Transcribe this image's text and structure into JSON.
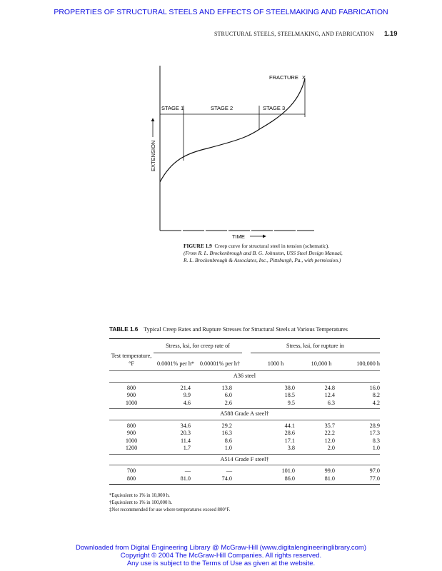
{
  "top_banner": "PROPERTIES OF STRUCTURAL STEELS AND EFFECTS OF STEELMAKING AND FABRICATION",
  "running_head": "STRUCTURAL STEELS, STEELMAKING, AND FABRICATION",
  "page_number": "1.19",
  "figure": {
    "labels": {
      "fracture": "FRACTURE",
      "fracture_mark": "X",
      "stage1": "STAGE 1",
      "stage2": "STAGE 2",
      "stage3": "STAGE 3",
      "y_axis": "EXTENSION",
      "x_axis": "TIME"
    },
    "caption_label": "FIGURE 1.9",
    "caption_text": "Creep curve for structural steel in tension (schematic).",
    "caption_source": "(From R. L. Brockenbrough and B. G. Johnston, USS Steel Design Manual, R. L. Brockenbrough & Associates, Inc., Pittsburgh, Pa., with permission.)"
  },
  "table": {
    "number": "TABLE 1.6",
    "title": "Typical Creep Rates and Rupture Stresses for Structural Steels at Various Temperatures",
    "group_headers": [
      "Stress, ksi, for creep rate of",
      "Stress, ksi, for rupture in"
    ],
    "col_headers": [
      "Test temperature, °F",
      "0.0001% per h*",
      "0.00001% per h†",
      "1000 h",
      "10,000 h",
      "100,000 h"
    ],
    "sections": [
      {
        "name": "A36 steel",
        "rows": [
          [
            "800",
            "21.4",
            "13.8",
            "38.0",
            "24.8",
            "16.0"
          ],
          [
            "900",
            "9.9",
            "6.0",
            "18.5",
            "12.4",
            "8.2"
          ],
          [
            "1000",
            "4.6",
            "2.6",
            "9.5",
            "6.3",
            "4.2"
          ]
        ]
      },
      {
        "name": "A588 Grade A steel†",
        "rows": [
          [
            "800",
            "34.6",
            "29.2",
            "44.1",
            "35.7",
            "28.9"
          ],
          [
            "900",
            "20.3",
            "16.3",
            "28.6",
            "22.2",
            "17.3"
          ],
          [
            "1000",
            "11.4",
            "8.6",
            "17.1",
            "12.0",
            "8.3"
          ],
          [
            "1200",
            "1.7",
            "1.0",
            "3.8",
            "2.0",
            "1.0"
          ]
        ]
      },
      {
        "name": "A514 Grade F steel†",
        "rows": [
          [
            "700",
            "—",
            "—",
            "101.0",
            "99.0",
            "97.0"
          ],
          [
            "800",
            "81.0",
            "74.0",
            "86.0",
            "81.0",
            "77.0"
          ]
        ]
      }
    ],
    "footnotes": [
      "*Equivalent to 1% in 10,000 h.",
      "†Equivalent to 1% in 100,000 h.",
      "‡Not recommended for use where temperatures exceed 800°F."
    ]
  },
  "footer": [
    "Downloaded from Digital Engineering Library @ McGraw-Hill (www.digitalengineeringlibrary.com)",
    "Copyright © 2004 The McGraw-Hill Companies. All rights reserved.",
    "Any use is subject to the Terms of Use as given at the website."
  ]
}
